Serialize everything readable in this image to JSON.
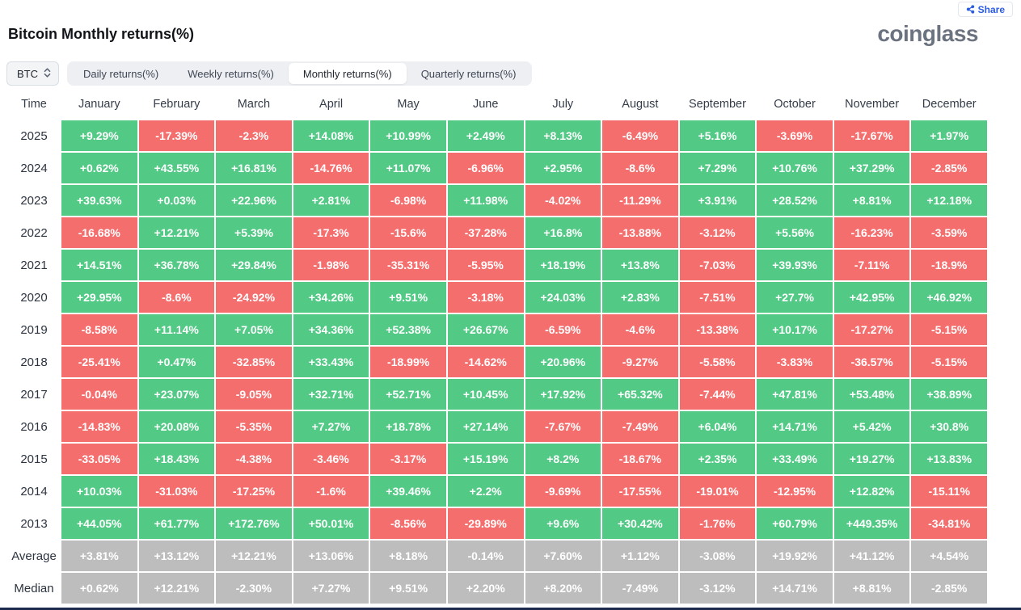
{
  "page": {
    "title": "Bitcoin Monthly returns(%)",
    "logo_text": "coinglass",
    "share_label": "Share"
  },
  "controls": {
    "symbol": "BTC",
    "tabs": [
      {
        "label": "Daily returns(%)",
        "active": false
      },
      {
        "label": "Weekly returns(%)",
        "active": false
      },
      {
        "label": "Monthly returns(%)",
        "active": true
      },
      {
        "label": "Quarterly returns(%)",
        "active": false
      }
    ]
  },
  "colors": {
    "positive": "#52ca85",
    "negative": "#f56e6e",
    "summary": "#bdbdbd",
    "accent_blue": "#2b5be3"
  },
  "table": {
    "headers": [
      "Time",
      "January",
      "February",
      "March",
      "April",
      "May",
      "June",
      "July",
      "August",
      "September",
      "October",
      "November",
      "December"
    ],
    "rows": [
      {
        "label": "2025",
        "summary": false,
        "values": [
          "+9.29%",
          "-17.39%",
          "-2.3%",
          "+14.08%",
          "+10.99%",
          "+2.49%",
          "+8.13%",
          "-6.49%",
          "+5.16%",
          "-3.69%",
          "-17.67%",
          "+1.97%"
        ]
      },
      {
        "label": "2024",
        "summary": false,
        "values": [
          "+0.62%",
          "+43.55%",
          "+16.81%",
          "-14.76%",
          "+11.07%",
          "-6.96%",
          "+2.95%",
          "-8.6%",
          "+7.29%",
          "+10.76%",
          "+37.29%",
          "-2.85%"
        ]
      },
      {
        "label": "2023",
        "summary": false,
        "values": [
          "+39.63%",
          "+0.03%",
          "+22.96%",
          "+2.81%",
          "-6.98%",
          "+11.98%",
          "-4.02%",
          "-11.29%",
          "+3.91%",
          "+28.52%",
          "+8.81%",
          "+12.18%"
        ]
      },
      {
        "label": "2022",
        "summary": false,
        "values": [
          "-16.68%",
          "+12.21%",
          "+5.39%",
          "-17.3%",
          "-15.6%",
          "-37.28%",
          "+16.8%",
          "-13.88%",
          "-3.12%",
          "+5.56%",
          "-16.23%",
          "-3.59%"
        ]
      },
      {
        "label": "2021",
        "summary": false,
        "values": [
          "+14.51%",
          "+36.78%",
          "+29.84%",
          "-1.98%",
          "-35.31%",
          "-5.95%",
          "+18.19%",
          "+13.8%",
          "-7.03%",
          "+39.93%",
          "-7.11%",
          "-18.9%"
        ]
      },
      {
        "label": "2020",
        "summary": false,
        "values": [
          "+29.95%",
          "-8.6%",
          "-24.92%",
          "+34.26%",
          "+9.51%",
          "-3.18%",
          "+24.03%",
          "+2.83%",
          "-7.51%",
          "+27.7%",
          "+42.95%",
          "+46.92%"
        ]
      },
      {
        "label": "2019",
        "summary": false,
        "values": [
          "-8.58%",
          "+11.14%",
          "+7.05%",
          "+34.36%",
          "+52.38%",
          "+26.67%",
          "-6.59%",
          "-4.6%",
          "-13.38%",
          "+10.17%",
          "-17.27%",
          "-5.15%"
        ]
      },
      {
        "label": "2018",
        "summary": false,
        "values": [
          "-25.41%",
          "+0.47%",
          "-32.85%",
          "+33.43%",
          "-18.99%",
          "-14.62%",
          "+20.96%",
          "-9.27%",
          "-5.58%",
          "-3.83%",
          "-36.57%",
          "-5.15%"
        ]
      },
      {
        "label": "2017",
        "summary": false,
        "values": [
          "-0.04%",
          "+23.07%",
          "-9.05%",
          "+32.71%",
          "+52.71%",
          "+10.45%",
          "+17.92%",
          "+65.32%",
          "-7.44%",
          "+47.81%",
          "+53.48%",
          "+38.89%"
        ]
      },
      {
        "label": "2016",
        "summary": false,
        "values": [
          "-14.83%",
          "+20.08%",
          "-5.35%",
          "+7.27%",
          "+18.78%",
          "+27.14%",
          "-7.67%",
          "-7.49%",
          "+6.04%",
          "+14.71%",
          "+5.42%",
          "+30.8%"
        ]
      },
      {
        "label": "2015",
        "summary": false,
        "values": [
          "-33.05%",
          "+18.43%",
          "-4.38%",
          "-3.46%",
          "-3.17%",
          "+15.19%",
          "+8.2%",
          "-18.67%",
          "+2.35%",
          "+33.49%",
          "+19.27%",
          "+13.83%"
        ]
      },
      {
        "label": "2014",
        "summary": false,
        "values": [
          "+10.03%",
          "-31.03%",
          "-17.25%",
          "-1.6%",
          "+39.46%",
          "+2.2%",
          "-9.69%",
          "-17.55%",
          "-19.01%",
          "-12.95%",
          "+12.82%",
          "-15.11%"
        ]
      },
      {
        "label": "2013",
        "summary": false,
        "values": [
          "+44.05%",
          "+61.77%",
          "+172.76%",
          "+50.01%",
          "-8.56%",
          "-29.89%",
          "+9.6%",
          "+30.42%",
          "-1.76%",
          "+60.79%",
          "+449.35%",
          "-34.81%"
        ]
      },
      {
        "label": "Average",
        "summary": true,
        "values": [
          "+3.81%",
          "+13.12%",
          "+12.21%",
          "+13.06%",
          "+8.18%",
          "-0.14%",
          "+7.60%",
          "+1.12%",
          "-3.08%",
          "+19.92%",
          "+41.12%",
          "+4.54%"
        ]
      },
      {
        "label": "Median",
        "summary": true,
        "values": [
          "+0.62%",
          "+12.21%",
          "-2.30%",
          "+7.27%",
          "+9.51%",
          "+2.20%",
          "+8.20%",
          "-7.49%",
          "-3.12%",
          "+14.71%",
          "+8.81%",
          "-2.85%"
        ]
      }
    ]
  }
}
